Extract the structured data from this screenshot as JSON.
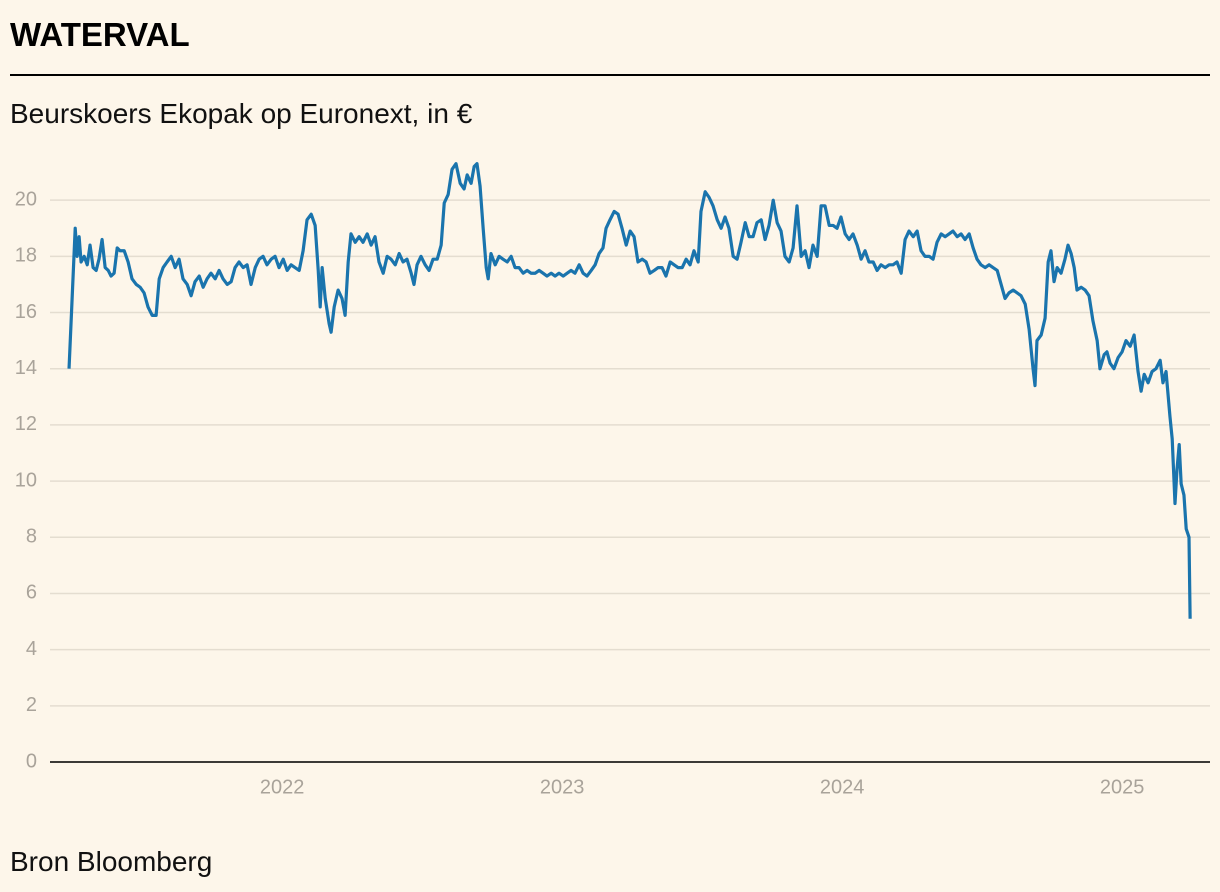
{
  "chart_data": {
    "type": "line",
    "title": "WATERVAL",
    "subtitle": "Beurskoers Ekopak op Euronext, in €",
    "source": "Bron Bloomberg",
    "color": "#1a74ad",
    "grid": true,
    "xlim": [
      2021.171,
      2025.314
    ],
    "xticks": [
      2022,
      2023,
      2024,
      2025
    ],
    "ylim": [
      0,
      22
    ],
    "yticks": [
      0,
      2,
      4,
      6,
      8,
      10,
      12,
      14,
      16,
      18,
      20
    ],
    "x": [
      2021.239,
      2021.25,
      2021.261,
      2021.268,
      2021.275,
      2021.282,
      2021.293,
      2021.304,
      2021.314,
      2021.325,
      2021.336,
      2021.346,
      2021.357,
      2021.368,
      2021.379,
      2021.389,
      2021.4,
      2021.411,
      2021.421,
      2021.436,
      2021.45,
      2021.464,
      2021.479,
      2021.493,
      2021.507,
      2021.521,
      2021.536,
      2021.55,
      2021.561,
      2021.575,
      2021.589,
      2021.604,
      2021.618,
      2021.632,
      2021.646,
      2021.661,
      2021.675,
      2021.689,
      2021.704,
      2021.718,
      2021.732,
      2021.746,
      2021.761,
      2021.775,
      2021.789,
      2021.804,
      2021.818,
      2021.832,
      2021.846,
      2021.861,
      2021.875,
      2021.889,
      2021.904,
      2021.918,
      2021.932,
      2021.946,
      2021.961,
      2021.975,
      2021.989,
      2022.004,
      2022.018,
      2022.032,
      2022.046,
      2022.061,
      2022.075,
      2022.089,
      2022.104,
      2022.118,
      2022.129,
      2022.136,
      2022.143,
      2022.154,
      2022.168,
      2022.175,
      2022.186,
      2022.2,
      2022.214,
      2022.225,
      2022.236,
      2022.246,
      2022.261,
      2022.275,
      2022.289,
      2022.304,
      2022.318,
      2022.332,
      2022.346,
      2022.361,
      2022.375,
      2022.389,
      2022.404,
      2022.418,
      2022.432,
      2022.446,
      2022.461,
      2022.471,
      2022.482,
      2022.496,
      2022.511,
      2022.525,
      2022.539,
      2022.554,
      2022.568,
      2022.579,
      2022.593,
      2022.607,
      2022.621,
      2022.636,
      2022.65,
      2022.661,
      2022.675,
      2022.686,
      2022.696,
      2022.707,
      2022.718,
      2022.729,
      2022.736,
      2022.746,
      2022.761,
      2022.775,
      2022.789,
      2022.804,
      2022.818,
      2022.832,
      2022.846,
      2022.861,
      2022.875,
      2022.889,
      2022.904,
      2022.918,
      2022.932,
      2022.946,
      2022.961,
      2022.975,
      2022.989,
      2023.004,
      2023.018,
      2023.032,
      2023.046,
      2023.061,
      2023.075,
      2023.089,
      2023.104,
      2023.118,
      2023.132,
      2023.146,
      2023.157,
      2023.171,
      2023.186,
      2023.2,
      2023.214,
      2023.229,
      2023.243,
      2023.257,
      2023.271,
      2023.286,
      2023.3,
      2023.314,
      2023.329,
      2023.343,
      2023.357,
      2023.371,
      2023.386,
      2023.4,
      2023.414,
      2023.429,
      2023.443,
      2023.457,
      2023.471,
      2023.486,
      2023.496,
      2023.511,
      2023.525,
      2023.539,
      2023.554,
      2023.568,
      2023.582,
      2023.596,
      2023.611,
      2023.625,
      2023.639,
      2023.654,
      2023.668,
      2023.682,
      2023.696,
      2023.711,
      2023.725,
      2023.739,
      2023.754,
      2023.768,
      2023.782,
      2023.796,
      2023.811,
      2023.825,
      2023.839,
      2023.854,
      2023.868,
      2023.882,
      2023.896,
      2023.911,
      2023.925,
      2023.939,
      2023.954,
      2023.968,
      2023.982,
      2023.996,
      2024.011,
      2024.025,
      2024.039,
      2024.054,
      2024.068,
      2024.082,
      2024.096,
      2024.111,
      2024.125,
      2024.139,
      2024.154,
      2024.168,
      2024.182,
      2024.196,
      2024.211,
      2024.225,
      2024.239,
      2024.254,
      2024.268,
      2024.282,
      2024.296,
      2024.311,
      2024.325,
      2024.339,
      2024.354,
      2024.368,
      2024.382,
      2024.396,
      2024.411,
      2024.425,
      2024.439,
      2024.454,
      2024.468,
      2024.482,
      2024.496,
      2024.511,
      2024.525,
      2024.539,
      2024.554,
      2024.568,
      2024.582,
      2024.596,
      2024.611,
      2024.625,
      2024.639,
      2024.654,
      2024.668,
      2024.682,
      2024.689,
      2024.696,
      2024.711,
      2024.725,
      2024.736,
      2024.746,
      2024.757,
      2024.768,
      2024.782,
      2024.796,
      2024.807,
      2024.818,
      2024.829,
      2024.839,
      2024.854,
      2024.868,
      2024.882,
      2024.896,
      2024.911,
      2024.921,
      2024.936,
      2024.946,
      2024.957,
      2024.971,
      2024.986,
      2025,
      2025.014,
      2025.029,
      2025.043,
      2025.057,
      2025.068,
      2025.079,
      2025.093,
      2025.107,
      2025.121,
      2025.136,
      2025.146,
      2025.157,
      2025.171,
      2025.179,
      2025.189,
      2025.196,
      2025.204,
      2025.211,
      2025.221,
      2025.229,
      2025.239,
      2025.243
    ],
    "values": [
      14.0,
      16.5,
      19.0,
      18.0,
      18.7,
      17.8,
      18.0,
      17.7,
      18.4,
      17.6,
      17.5,
      17.9,
      18.6,
      17.6,
      17.5,
      17.3,
      17.4,
      18.3,
      18.2,
      18.2,
      17.8,
      17.2,
      17.0,
      16.9,
      16.7,
      16.2,
      15.9,
      15.9,
      17.2,
      17.6,
      17.8,
      18.0,
      17.6,
      17.9,
      17.2,
      17.0,
      16.6,
      17.1,
      17.3,
      16.9,
      17.2,
      17.4,
      17.2,
      17.5,
      17.2,
      17.0,
      17.1,
      17.6,
      17.8,
      17.6,
      17.7,
      17.0,
      17.6,
      17.9,
      18.0,
      17.7,
      17.9,
      18.0,
      17.6,
      17.9,
      17.5,
      17.7,
      17.6,
      17.5,
      18.2,
      19.3,
      19.5,
      19.1,
      17.5,
      16.2,
      17.6,
      16.5,
      15.6,
      15.3,
      16.2,
      16.8,
      16.5,
      15.9,
      17.8,
      18.8,
      18.5,
      18.7,
      18.5,
      18.8,
      18.4,
      18.7,
      17.8,
      17.4,
      18.0,
      17.9,
      17.7,
      18.1,
      17.8,
      17.9,
      17.4,
      17.0,
      17.7,
      18.0,
      17.7,
      17.5,
      17.9,
      17.9,
      18.4,
      19.9,
      20.2,
      21.1,
      21.3,
      20.6,
      20.4,
      20.9,
      20.6,
      21.2,
      21.3,
      20.5,
      19.0,
      17.6,
      17.2,
      18.1,
      17.7,
      18.0,
      17.9,
      17.8,
      18.0,
      17.6,
      17.6,
      17.4,
      17.5,
      17.4,
      17.4,
      17.5,
      17.4,
      17.3,
      17.4,
      17.3,
      17.4,
      17.3,
      17.4,
      17.5,
      17.4,
      17.7,
      17.4,
      17.3,
      17.5,
      17.7,
      18.1,
      18.3,
      19.0,
      19.3,
      19.6,
      19.5,
      19.0,
      18.4,
      18.9,
      18.7,
      17.8,
      17.9,
      17.8,
      17.4,
      17.5,
      17.6,
      17.6,
      17.3,
      17.8,
      17.7,
      17.6,
      17.6,
      17.9,
      17.7,
      18.2,
      17.8,
      19.6,
      20.3,
      20.1,
      19.8,
      19.3,
      19.0,
      19.4,
      19.0,
      18.0,
      17.9,
      18.5,
      19.2,
      18.7,
      18.7,
      19.2,
      19.3,
      18.6,
      19.1,
      20.0,
      19.2,
      18.9,
      18.0,
      17.8,
      18.3,
      19.8,
      18.0,
      18.2,
      17.6,
      18.4,
      18.0,
      19.8,
      19.8,
      19.1,
      19.1,
      19.0,
      19.4,
      18.8,
      18.6,
      18.8,
      18.4,
      17.9,
      18.2,
      17.8,
      17.8,
      17.5,
      17.7,
      17.6,
      17.7,
      17.7,
      17.8,
      17.4,
      18.6,
      18.9,
      18.7,
      18.9,
      18.2,
      18.0,
      18.0,
      17.9,
      18.5,
      18.8,
      18.7,
      18.8,
      18.9,
      18.7,
      18.8,
      18.6,
      18.8,
      18.3,
      17.9,
      17.7,
      17.6,
      17.7,
      17.6,
      17.5,
      17.0,
      16.5,
      16.7,
      16.8,
      16.7,
      16.6,
      16.3,
      15.4,
      14.0,
      13.4,
      15.0,
      15.2,
      15.8,
      17.8,
      18.2,
      17.1,
      17.6,
      17.4,
      17.9,
      18.4,
      18.1,
      17.6,
      16.8,
      16.9,
      16.8,
      16.6,
      15.7,
      15.0,
      14.0,
      14.5,
      14.6,
      14.2,
      14.0,
      14.4,
      14.6,
      15.0,
      14.8,
      15.2,
      13.9,
      13.2,
      13.8,
      13.5,
      13.9,
      14.0,
      14.3,
      13.5,
      13.9,
      12.3,
      11.5,
      9.2,
      10.4,
      11.3,
      9.9,
      9.5,
      8.3,
      8.0,
      5.1
    ]
  }
}
